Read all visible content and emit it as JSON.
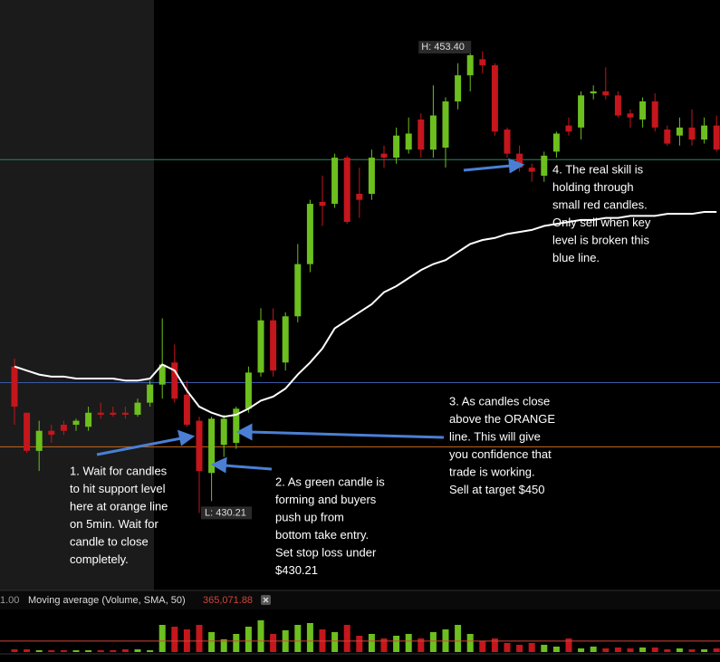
{
  "chart_data": {
    "type": "candlestick",
    "up_color": "#6cbf1e",
    "down_color": "#c4161c",
    "ylim": [
      426.44,
      455.75
    ],
    "open": [
      437.5,
      435.2,
      433.3,
      434.3,
      434.6,
      434.6,
      434.5,
      435.2,
      435.2,
      435.2,
      435.1,
      435.7,
      436.6,
      437.7,
      436.1,
      434.8,
      432.2,
      433.6,
      433.7,
      435.4,
      437.2,
      439.8,
      437.7,
      440.0,
      442.6,
      445.7,
      445.6,
      447.9,
      446.1,
      446.1,
      448.1,
      447.9,
      448.3,
      449.8,
      448.3,
      448.4,
      450.7,
      452.0,
      452.8,
      452.5,
      449.3,
      448.1,
      447.4,
      447.0,
      448.2,
      449.5,
      449.4,
      451.1,
      451.2,
      451.0,
      450.1,
      449.8,
      450.7,
      449.3,
      449.0,
      449.4,
      448.8,
      449.5
    ],
    "high": [
      437.9,
      435.2,
      434.8,
      434.6,
      434.8,
      434.9,
      435.5,
      435.7,
      435.5,
      435.5,
      435.9,
      436.8,
      439.9,
      438.6,
      436.8,
      435.0,
      435.0,
      435.1,
      435.5,
      437.5,
      440.4,
      440.4,
      440.2,
      443.6,
      445.8,
      447.0,
      448.1,
      448.0,
      447.4,
      448.3,
      448.5,
      449.4,
      449.9,
      450.1,
      451.5,
      450.9,
      452.6,
      453.4,
      453.2,
      452.6,
      449.4,
      448.5,
      447.6,
      448.2,
      449.2,
      449.9,
      451.2,
      451.5,
      452.4,
      451.2,
      450.3,
      450.9,
      451.1,
      449.5,
      449.9,
      450.3,
      449.9,
      450.0
    ],
    "low": [
      434.6,
      433.2,
      432.3,
      433.7,
      434.1,
      434.3,
      434.3,
      434.9,
      435.0,
      434.9,
      435.0,
      435.5,
      435.9,
      435.7,
      434.5,
      430.21,
      430.8,
      433.0,
      433.4,
      435.2,
      437.0,
      437.0,
      437.3,
      439.7,
      442.2,
      444.5,
      445.4,
      444.6,
      444.9,
      445.8,
      447.4,
      447.6,
      448.1,
      447.9,
      447.9,
      447.4,
      450.3,
      451.2,
      452.1,
      449.0,
      447.9,
      447.2,
      446.7,
      446.7,
      447.9,
      449.0,
      448.8,
      450.8,
      450.8,
      449.9,
      449.4,
      449.4,
      449.2,
      448.5,
      448.5,
      448.5,
      448.6,
      448.2
    ],
    "close": [
      435.5,
      433.3,
      434.3,
      434.1,
      434.3,
      434.8,
      435.2,
      435.1,
      435.1,
      435.1,
      435.7,
      436.6,
      437.6,
      435.9,
      434.6,
      432.3,
      434.9,
      434.9,
      435.4,
      437.2,
      439.8,
      437.3,
      440.0,
      442.6,
      445.6,
      445.5,
      447.9,
      444.7,
      445.8,
      447.9,
      447.9,
      449.0,
      449.1,
      448.3,
      450.0,
      450.7,
      452.0,
      453.0,
      452.5,
      449.2,
      448.1,
      447.4,
      447.2,
      448.0,
      449.1,
      449.2,
      451.0,
      451.2,
      451.0,
      450.0,
      449.9,
      450.7,
      449.4,
      448.6,
      449.4,
      448.8,
      449.5,
      448.3
    ],
    "moving_average": {
      "color": "#ffffff",
      "values": [
        437.5,
        437.3,
        437.1,
        437.0,
        437.0,
        436.9,
        436.9,
        436.9,
        436.9,
        436.8,
        436.8,
        436.9,
        437.6,
        437.3,
        436.3,
        435.5,
        435.2,
        435.0,
        435.1,
        435.4,
        435.8,
        436.0,
        436.4,
        437.1,
        437.7,
        438.4,
        439.4,
        439.8,
        440.2,
        440.6,
        441.2,
        441.5,
        441.9,
        442.3,
        442.6,
        442.8,
        443.2,
        443.6,
        443.8,
        443.9,
        444.1,
        444.2,
        444.3,
        444.5,
        444.6,
        444.7,
        444.8,
        444.8,
        444.9,
        444.9,
        445.0,
        445.0,
        445.0,
        445.1,
        445.1,
        445.1,
        445.2,
        445.2
      ]
    },
    "levels": [
      {
        "value": 447.8,
        "color": "#1f8a6a"
      },
      {
        "value": 436.7,
        "color": "#3a5aa6"
      },
      {
        "value": 433.5,
        "color": "#c8691e"
      }
    ],
    "high_label": "H: 453.40",
    "low_label": "L: 430.21",
    "annotations": [
      {
        "lines": [
          "1. Wait for candles",
          "to hit support level",
          "here at orange line",
          "on 5min. Wait for",
          "candle to close",
          "completely."
        ]
      },
      {
        "lines": [
          "2. As green candle is",
          "forming and buyers",
          "push up from",
          "bottom take entry.",
          "Set stop loss under",
          "$430.21"
        ]
      },
      {
        "lines": [
          "3. As candles close",
          "above the ORANGE",
          "line. This will give",
          "you confidence that",
          "trade is working.",
          "Sell at target $450"
        ]
      },
      {
        "lines": [
          "4. The real skill is",
          "holding through",
          "small red candles.",
          "Only sell when key",
          "level is broken this",
          "blue line."
        ]
      }
    ],
    "volume_header": {
      "left": "1.00",
      "title": "Moving average (Volume, SMA, 50)",
      "ma_value": {
        "value": 365071.88,
        "label": "365,071.88"
      },
      "ma_color": "#d0443a"
    },
    "volume_ylim": [
      0,
      1410000
    ],
    "volume": [
      90000,
      90000,
      60000,
      60000,
      60000,
      60000,
      60000,
      60000,
      60000,
      90000,
      90000,
      60000,
      900000,
      840000,
      750000,
      900000,
      660000,
      420000,
      600000,
      840000,
      1050000,
      600000,
      720000,
      900000,
      960000,
      750000,
      660000,
      900000,
      540000,
      600000,
      450000,
      540000,
      600000,
      450000,
      660000,
      750000,
      900000,
      600000,
      360000,
      450000,
      300000,
      240000,
      300000,
      240000,
      180000,
      450000,
      120000,
      180000,
      120000,
      150000,
      120000,
      150000,
      150000,
      90000,
      120000,
      90000,
      90000,
      120000
    ]
  }
}
